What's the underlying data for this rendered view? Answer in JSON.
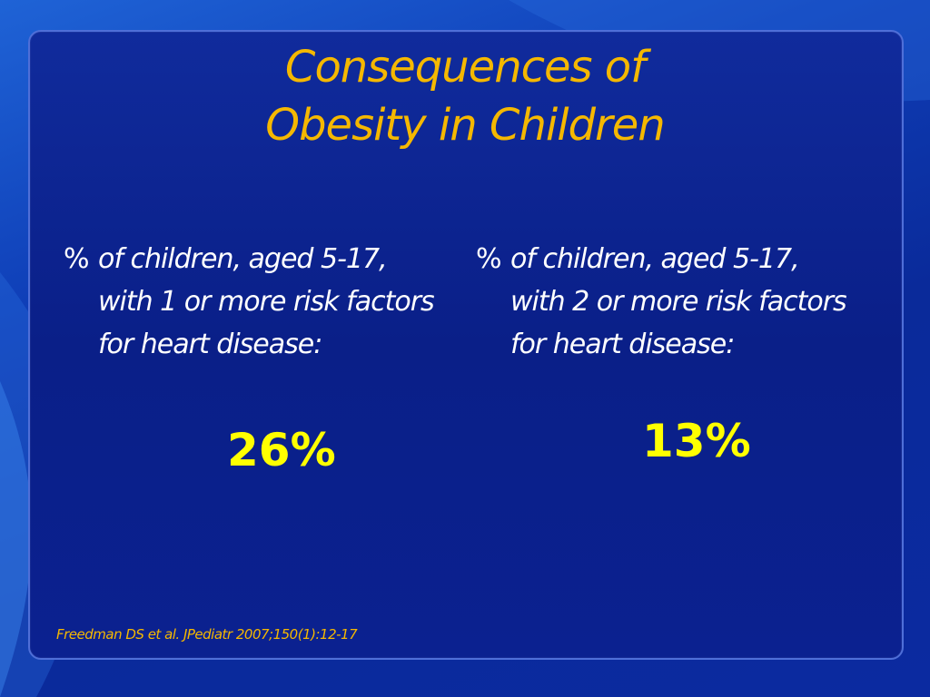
{
  "slide": {
    "title_line1": "Consequences of",
    "title_line2": "Obesity in Children",
    "left": {
      "bullet": "%",
      "text": "of children, aged 5-17, with 1 or more risk factors for heart disease:",
      "stat": "26%"
    },
    "right": {
      "bullet": "%",
      "text": "of children, aged 5-17, with 2 or more risk factors for heart disease:",
      "stat": "13%"
    },
    "citation": "Freedman DS et al. JPediatr 2007;150(1):12-17"
  },
  "colors": {
    "title": "#f5b800",
    "stat": "#ffff00",
    "body_text": "#ffffff",
    "background": "#0a2a9a"
  }
}
